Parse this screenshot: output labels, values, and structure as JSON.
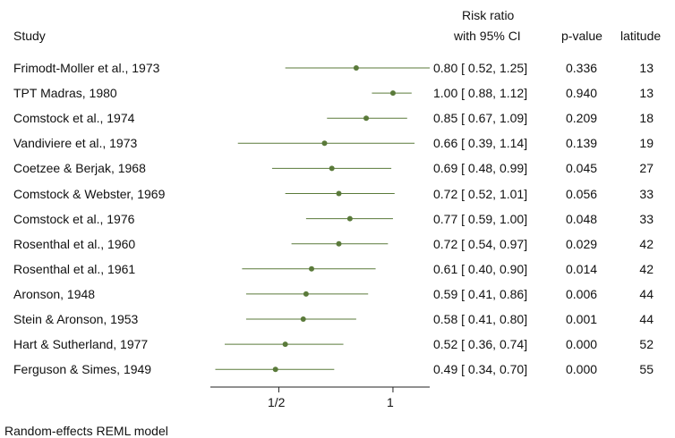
{
  "chart_data": {
    "type": "forest",
    "columns": {
      "study": "Study",
      "effect_line1": "Risk ratio",
      "effect_line2": "with 95% CI",
      "pvalue": "p-value",
      "latitude": "latitude"
    },
    "rows": [
      {
        "study": "Frimodt-Moller et al., 1973",
        "rr": 0.8,
        "lo": 0.52,
        "hi": 1.25,
        "ci_text": "0.80 [ 0.52,  1.25]",
        "p": "0.336",
        "lat": "13"
      },
      {
        "study": "TPT Madras, 1980",
        "rr": 1.0,
        "lo": 0.88,
        "hi": 1.12,
        "ci_text": "1.00 [ 0.88,  1.12]",
        "p": "0.940",
        "lat": "13"
      },
      {
        "study": "Comstock et al., 1974",
        "rr": 0.85,
        "lo": 0.67,
        "hi": 1.09,
        "ci_text": "0.85 [ 0.67,  1.09]",
        "p": "0.209",
        "lat": "18"
      },
      {
        "study": "Vandiviere et al., 1973",
        "rr": 0.66,
        "lo": 0.39,
        "hi": 1.14,
        "ci_text": "0.66 [ 0.39,  1.14]",
        "p": "0.139",
        "lat": "19"
      },
      {
        "study": "Coetzee & Berjak, 1968",
        "rr": 0.69,
        "lo": 0.48,
        "hi": 0.99,
        "ci_text": "0.69 [ 0.48,  0.99]",
        "p": "0.045",
        "lat": "27"
      },
      {
        "study": "Comstock & Webster, 1969",
        "rr": 0.72,
        "lo": 0.52,
        "hi": 1.01,
        "ci_text": "0.72 [ 0.52,  1.01]",
        "p": "0.056",
        "lat": "33"
      },
      {
        "study": "Comstock et al., 1976",
        "rr": 0.77,
        "lo": 0.59,
        "hi": 1.0,
        "ci_text": "0.77 [ 0.59,  1.00]",
        "p": "0.048",
        "lat": "33"
      },
      {
        "study": "Rosenthal et al., 1960",
        "rr": 0.72,
        "lo": 0.54,
        "hi": 0.97,
        "ci_text": "0.72 [ 0.54,  0.97]",
        "p": "0.029",
        "lat": "42"
      },
      {
        "study": "Rosenthal et al., 1961",
        "rr": 0.61,
        "lo": 0.4,
        "hi": 0.9,
        "ci_text": "0.61 [ 0.40,  0.90]",
        "p": "0.014",
        "lat": "42"
      },
      {
        "study": "Aronson, 1948",
        "rr": 0.59,
        "lo": 0.41,
        "hi": 0.86,
        "ci_text": "0.59 [ 0.41,  0.86]",
        "p": "0.006",
        "lat": "44"
      },
      {
        "study": "Stein & Aronson, 1953",
        "rr": 0.58,
        "lo": 0.41,
        "hi": 0.8,
        "ci_text": "0.58 [ 0.41,  0.80]",
        "p": "0.001",
        "lat": "44"
      },
      {
        "study": "Hart & Sutherland, 1977",
        "rr": 0.52,
        "lo": 0.36,
        "hi": 0.74,
        "ci_text": "0.52 [ 0.36,  0.74]",
        "p": "0.000",
        "lat": "52"
      },
      {
        "study": "Ferguson & Simes, 1949",
        "rr": 0.49,
        "lo": 0.34,
        "hi": 0.7,
        "ci_text": "0.49 [ 0.34,  0.70]",
        "p": "0.000",
        "lat": "55"
      }
    ],
    "x_scale": "log",
    "x_ticks": [
      {
        "value": 0.5,
        "label": "1/2"
      },
      {
        "value": 1,
        "label": "1"
      }
    ],
    "xlim": [
      0.33,
      1.25
    ],
    "marker_color": "#5a7a3a",
    "footnote": "Random-effects REML model"
  }
}
